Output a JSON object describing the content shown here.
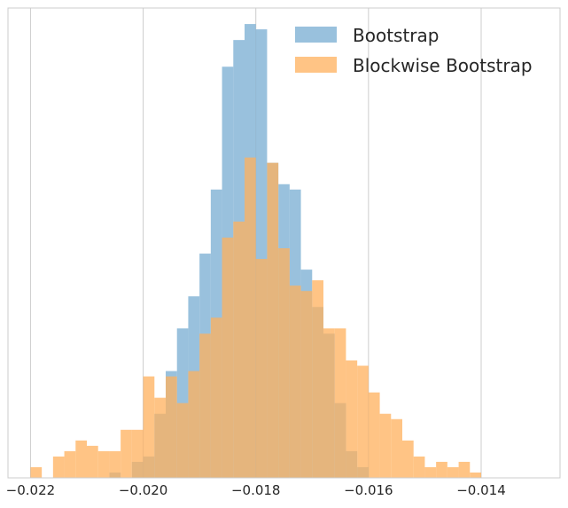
{
  "chart_data": {
    "type": "histogram",
    "title": "",
    "xlabel": "",
    "ylabel": "",
    "xlim": [
      -0.0224,
      -0.0126
    ],
    "ylim": [
      0,
      88
    ],
    "bin_width": 0.0002,
    "grid": "vertical",
    "legend_position": "top-right",
    "x_ticks": [
      {
        "value": -0.022,
        "label": "−0.022"
      },
      {
        "value": -0.02,
        "label": "−0.020"
      },
      {
        "value": -0.018,
        "label": "−0.018"
      },
      {
        "value": -0.016,
        "label": "−0.016"
      },
      {
        "value": -0.014,
        "label": "−0.014"
      }
    ],
    "series": [
      {
        "name": "Bootstrap",
        "color": "#7fb2d5",
        "opacity": 0.8,
        "bins": [
          {
            "x0": -0.0206,
            "count": 1
          },
          {
            "x0": -0.0202,
            "count": 3
          },
          {
            "x0": -0.02,
            "count": 4
          },
          {
            "x0": -0.0198,
            "count": 12
          },
          {
            "x0": -0.0196,
            "count": 20
          },
          {
            "x0": -0.0194,
            "count": 28
          },
          {
            "x0": -0.0192,
            "count": 34
          },
          {
            "x0": -0.019,
            "count": 42
          },
          {
            "x0": -0.0188,
            "count": 54
          },
          {
            "x0": -0.0186,
            "count": 77
          },
          {
            "x0": -0.0184,
            "count": 82
          },
          {
            "x0": -0.0182,
            "count": 85
          },
          {
            "x0": -0.018,
            "count": 84
          },
          {
            "x0": -0.0178,
            "count": 59
          },
          {
            "x0": -0.0176,
            "count": 55
          },
          {
            "x0": -0.0174,
            "count": 54
          },
          {
            "x0": -0.0172,
            "count": 39
          },
          {
            "x0": -0.017,
            "count": 32
          },
          {
            "x0": -0.0168,
            "count": 27
          },
          {
            "x0": -0.0166,
            "count": 14
          },
          {
            "x0": -0.0164,
            "count": 5
          },
          {
            "x0": -0.0162,
            "count": 2
          }
        ]
      },
      {
        "name": "Blockwise Bootstrap",
        "color": "#ffb05c",
        "opacity": 0.75,
        "bins": [
          {
            "x0": -0.022,
            "count": 2
          },
          {
            "x0": -0.0216,
            "count": 4
          },
          {
            "x0": -0.0214,
            "count": 5
          },
          {
            "x0": -0.0212,
            "count": 7
          },
          {
            "x0": -0.021,
            "count": 6
          },
          {
            "x0": -0.0208,
            "count": 5
          },
          {
            "x0": -0.0206,
            "count": 5
          },
          {
            "x0": -0.0204,
            "count": 9
          },
          {
            "x0": -0.0202,
            "count": 9
          },
          {
            "x0": -0.02,
            "count": 19
          },
          {
            "x0": -0.0198,
            "count": 15
          },
          {
            "x0": -0.0196,
            "count": 19
          },
          {
            "x0": -0.0194,
            "count": 14
          },
          {
            "x0": -0.0192,
            "count": 20
          },
          {
            "x0": -0.019,
            "count": 27
          },
          {
            "x0": -0.0188,
            "count": 30
          },
          {
            "x0": -0.0186,
            "count": 45
          },
          {
            "x0": -0.0184,
            "count": 48
          },
          {
            "x0": -0.0182,
            "count": 60
          },
          {
            "x0": -0.018,
            "count": 41
          },
          {
            "x0": -0.0178,
            "count": 59
          },
          {
            "x0": -0.0176,
            "count": 43
          },
          {
            "x0": -0.0174,
            "count": 36
          },
          {
            "x0": -0.0172,
            "count": 35
          },
          {
            "x0": -0.017,
            "count": 37
          },
          {
            "x0": -0.0168,
            "count": 28
          },
          {
            "x0": -0.0166,
            "count": 28
          },
          {
            "x0": -0.0164,
            "count": 22
          },
          {
            "x0": -0.0162,
            "count": 21
          },
          {
            "x0": -0.016,
            "count": 16
          },
          {
            "x0": -0.0158,
            "count": 12
          },
          {
            "x0": -0.0156,
            "count": 11
          },
          {
            "x0": -0.0154,
            "count": 7
          },
          {
            "x0": -0.0152,
            "count": 4
          },
          {
            "x0": -0.015,
            "count": 2
          },
          {
            "x0": -0.0148,
            "count": 3
          },
          {
            "x0": -0.0146,
            "count": 2
          },
          {
            "x0": -0.0144,
            "count": 3
          },
          {
            "x0": -0.0142,
            "count": 1
          }
        ]
      }
    ]
  }
}
